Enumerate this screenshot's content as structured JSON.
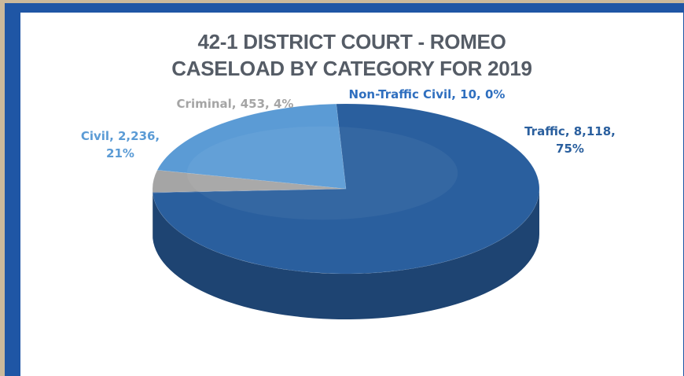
{
  "chart_data": {
    "type": "pie",
    "title_line1": "42-1 DISTRICT COURT - ROMEO",
    "title_line2": "CASELOAD BY CATEGORY FOR 2019",
    "slices": [
      {
        "name": "Traffic",
        "value": 8118,
        "value_text": "8,118",
        "percent": "75%",
        "color": "#2a5f9e"
      },
      {
        "name": "Non-Traffic Civil",
        "value": 10,
        "value_text": "10",
        "percent": "0%",
        "color": "#1f4e8c"
      },
      {
        "name": "Criminal",
        "value": 453,
        "value_text": "453",
        "percent": "4%",
        "color": "#a5a5a5"
      },
      {
        "name": "Civil",
        "value": 2236,
        "value_text": "2,236",
        "percent": "21%",
        "color": "#5b9bd5"
      }
    ],
    "labels": {
      "traffic": [
        "Traffic,  8,118,",
        "75%"
      ],
      "non_traffic_civil": [
        "Non-Traffic Civil,  10, 0%"
      ],
      "criminal": [
        "Criminal,  453, 4%"
      ],
      "civil": [
        "Civil,  2,236,",
        "21%"
      ]
    },
    "label_colors": {
      "traffic": "#2a5f9e",
      "non_traffic_civil": "#2f6fbf",
      "criminal": "#a5a5a5",
      "civil": "#5b9bd5"
    }
  }
}
